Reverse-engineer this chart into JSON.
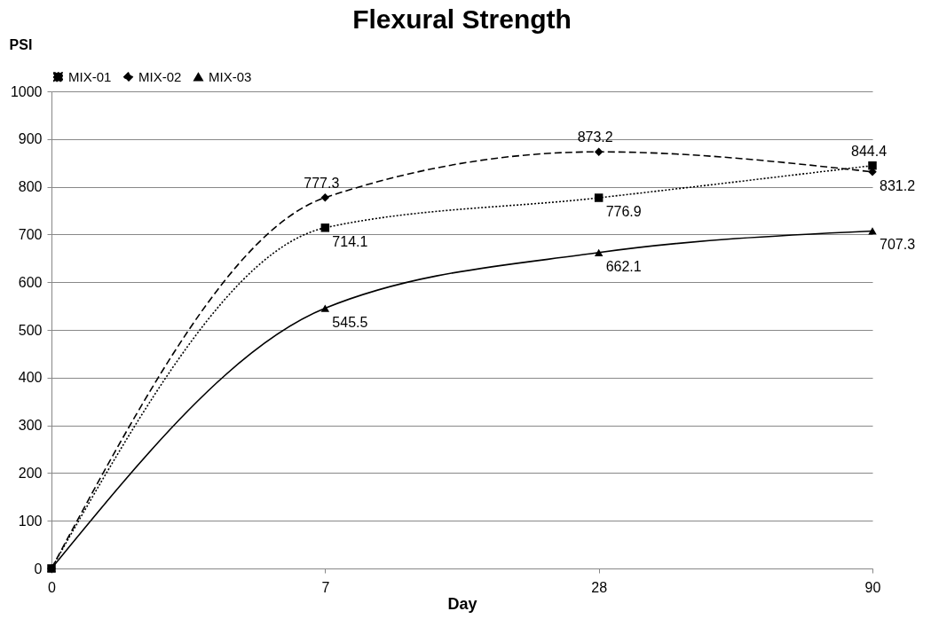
{
  "chart_data": {
    "type": "line",
    "title": "Flexural Strength",
    "xlabel": "Day",
    "ylabel": "PSI",
    "categories": [
      "0",
      "7",
      "28",
      "90"
    ],
    "series": [
      {
        "name": "MIX-01",
        "color": "#000000",
        "marker": "square",
        "line_style": "dotted",
        "values": [
          0,
          714.1,
          776.9,
          844.4
        ],
        "value_labels": [
          null,
          "714.1",
          "776.9",
          "844.4"
        ]
      },
      {
        "name": "MIX-02",
        "color": "#000000",
        "marker": "diamond",
        "line_style": "dashed",
        "values": [
          0,
          777.3,
          873.2,
          831.2
        ],
        "value_labels": [
          null,
          "777.3",
          "873.2",
          "831.2"
        ]
      },
      {
        "name": "MIX-03",
        "color": "#000000",
        "marker": "triangle",
        "line_style": "solid",
        "values": [
          0,
          545.5,
          662.1,
          707.3
        ],
        "value_labels": [
          null,
          "545.5",
          "662.1",
          "707.3"
        ]
      }
    ],
    "ylim": [
      0,
      1000
    ],
    "yticks": [
      0,
      100,
      200,
      300,
      400,
      500,
      600,
      700,
      800,
      900,
      1000
    ],
    "grid": "y",
    "legend": "top"
  }
}
